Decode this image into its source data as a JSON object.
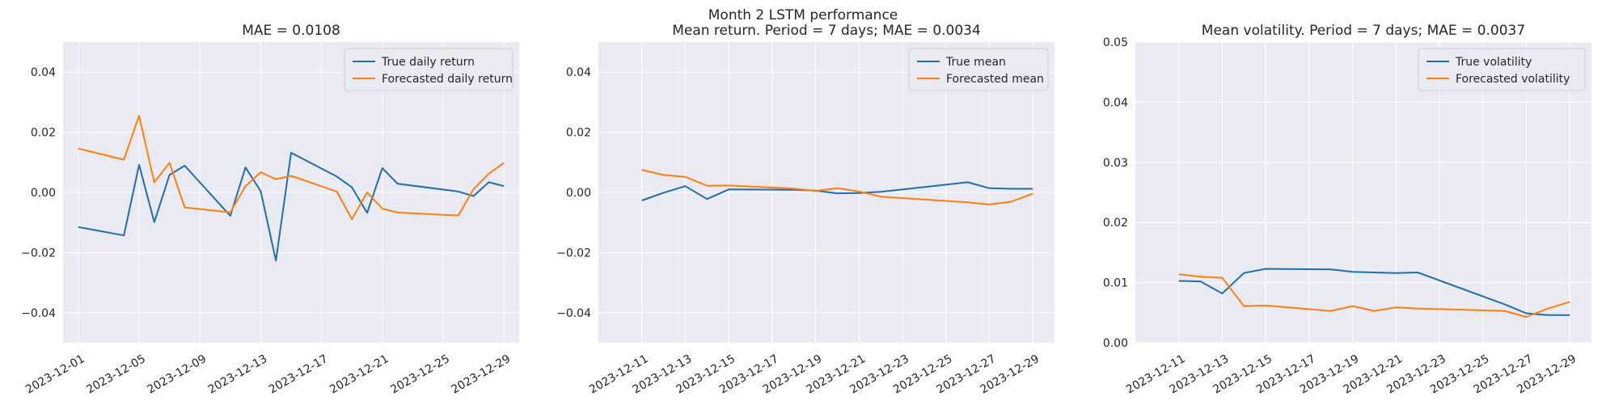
{
  "figure_title": "Month 2 LSTM performance",
  "colors": {
    "true": "#1f6fad",
    "forecast": "#ff7f0e",
    "panel_bg": "#eaeaf2",
    "grid": "#ffffff"
  },
  "chart_data": [
    {
      "type": "line",
      "title": "MAE = 0.0108",
      "xlabel": "",
      "ylabel": "",
      "xlim": [
        "2023-11-30",
        "2023-12-30"
      ],
      "ylim": [
        -0.05,
        0.05
      ],
      "yticks": [
        -0.04,
        -0.02,
        0.0,
        0.02,
        0.04
      ],
      "ytick_labels": [
        "−0.04",
        "−0.02",
        "0.00",
        "0.02",
        "0.04"
      ],
      "xticks": [
        "2023-12-01",
        "2023-12-05",
        "2023-12-09",
        "2023-12-13",
        "2023-12-17",
        "2023-12-21",
        "2023-12-25",
        "2023-12-29"
      ],
      "grid": true,
      "legend_position": "top-right",
      "series": [
        {
          "name": "True daily return",
          "color": "#1f6fad",
          "x": [
            "2023-12-01",
            "2023-12-04",
            "2023-12-05",
            "2023-12-06",
            "2023-12-07",
            "2023-12-08",
            "2023-12-11",
            "2023-12-12",
            "2023-12-13",
            "2023-12-14",
            "2023-12-15",
            "2023-12-18",
            "2023-12-19",
            "2023-12-20",
            "2023-12-21",
            "2023-12-22",
            "2023-12-26",
            "2023-12-27",
            "2023-12-28",
            "2023-12-29"
          ],
          "y": [
            -0.0115,
            -0.0143,
            0.0092,
            -0.0099,
            0.0058,
            0.0089,
            -0.0078,
            0.0083,
            0.0004,
            -0.0227,
            0.0132,
            0.0053,
            0.0017,
            -0.0068,
            0.0081,
            0.0029,
            0.0003,
            -0.0012,
            0.0034,
            0.0021
          ]
        },
        {
          "name": "Forecasted daily return",
          "color": "#ff7f0e",
          "x": [
            "2023-12-01",
            "2023-12-04",
            "2023-12-05",
            "2023-12-06",
            "2023-12-07",
            "2023-12-08",
            "2023-12-11",
            "2023-12-12",
            "2023-12-13",
            "2023-12-14",
            "2023-12-15",
            "2023-12-18",
            "2023-12-19",
            "2023-12-20",
            "2023-12-21",
            "2023-12-22",
            "2023-12-26",
            "2023-12-27",
            "2023-12-28",
            "2023-12-29"
          ],
          "y": [
            0.0146,
            0.0109,
            0.0255,
            0.0033,
            0.0099,
            -0.005,
            -0.0066,
            0.0021,
            0.0067,
            0.0044,
            0.0055,
            0.0003,
            -0.0089,
            0.0,
            -0.0054,
            -0.0067,
            -0.0077,
            0.0011,
            0.0062,
            0.0098
          ]
        }
      ]
    },
    {
      "type": "line",
      "title": "Mean return. Period = 7 days; MAE = 0.0034",
      "xlabel": "",
      "ylabel": "",
      "xlim": [
        "2023-12-09",
        "2023-12-30"
      ],
      "ylim": [
        -0.05,
        0.05
      ],
      "yticks": [
        -0.04,
        -0.02,
        0.0,
        0.02,
        0.04
      ],
      "ytick_labels": [
        "−0.04",
        "−0.02",
        "0.00",
        "0.02",
        "0.04"
      ],
      "xticks": [
        "2023-12-11",
        "2023-12-13",
        "2023-12-15",
        "2023-12-17",
        "2023-12-19",
        "2023-12-21",
        "2023-12-23",
        "2023-12-25",
        "2023-12-27",
        "2023-12-29"
      ],
      "grid": true,
      "legend_position": "top-right",
      "series": [
        {
          "name": "True mean",
          "color": "#1f6fad",
          "x": [
            "2023-12-11",
            "2023-12-12",
            "2023-12-13",
            "2023-12-14",
            "2023-12-15",
            "2023-12-18",
            "2023-12-19",
            "2023-12-20",
            "2023-12-21",
            "2023-12-22",
            "2023-12-26",
            "2023-12-27",
            "2023-12-28",
            "2023-12-29"
          ],
          "y": [
            -0.0027,
            -0.0001,
            0.0021,
            -0.0022,
            0.001,
            0.0009,
            0.0006,
            -0.0003,
            -0.0002,
            0.0002,
            0.0034,
            0.0014,
            0.0012,
            0.0012
          ]
        },
        {
          "name": "Forecasted mean",
          "color": "#ff7f0e",
          "x": [
            "2023-12-11",
            "2023-12-12",
            "2023-12-13",
            "2023-12-14",
            "2023-12-15",
            "2023-12-18",
            "2023-12-19",
            "2023-12-20",
            "2023-12-21",
            "2023-12-22",
            "2023-12-26",
            "2023-12-27",
            "2023-12-28",
            "2023-12-29"
          ],
          "y": [
            0.0075,
            0.0058,
            0.0052,
            0.0022,
            0.0023,
            0.0013,
            0.0005,
            0.0014,
            0.0003,
            -0.0014,
            -0.0033,
            -0.004,
            -0.0031,
            -0.0004
          ]
        }
      ]
    },
    {
      "type": "line",
      "title": "Mean volatility. Period = 7 days; MAE = 0.0037",
      "xlabel": "",
      "ylabel": "",
      "xlim": [
        "2023-12-09",
        "2023-12-30"
      ],
      "ylim": [
        0.0,
        0.05
      ],
      "yticks": [
        0.0,
        0.01,
        0.02,
        0.03,
        0.04,
        0.05
      ],
      "ytick_labels": [
        "0.00",
        "0.01",
        "0.02",
        "0.03",
        "0.04",
        "0.05"
      ],
      "xticks": [
        "2023-12-11",
        "2023-12-13",
        "2023-12-15",
        "2023-12-17",
        "2023-12-19",
        "2023-12-21",
        "2023-12-23",
        "2023-12-25",
        "2023-12-27",
        "2023-12-29"
      ],
      "grid": true,
      "legend_position": "top-right",
      "series": [
        {
          "name": "True volatility",
          "color": "#1f6fad",
          "x": [
            "2023-12-11",
            "2023-12-12",
            "2023-12-13",
            "2023-12-14",
            "2023-12-15",
            "2023-12-18",
            "2023-12-19",
            "2023-12-20",
            "2023-12-21",
            "2023-12-22",
            "2023-12-26",
            "2023-12-27",
            "2023-12-28",
            "2023-12-29"
          ],
          "y": [
            0.0103,
            0.0102,
            0.0082,
            0.0116,
            0.0123,
            0.0122,
            0.0118,
            0.0117,
            0.0116,
            0.0117,
            0.0064,
            0.0049,
            0.0046,
            0.0046
          ]
        },
        {
          "name": "Forecasted volatility",
          "color": "#ff7f0e",
          "x": [
            "2023-12-11",
            "2023-12-12",
            "2023-12-13",
            "2023-12-14",
            "2023-12-15",
            "2023-12-18",
            "2023-12-19",
            "2023-12-20",
            "2023-12-21",
            "2023-12-22",
            "2023-12-26",
            "2023-12-27",
            "2023-12-28",
            "2023-12-29"
          ],
          "y": [
            0.0114,
            0.011,
            0.0108,
            0.0061,
            0.0062,
            0.0053,
            0.0061,
            0.0053,
            0.0059,
            0.0057,
            0.0053,
            0.0043,
            0.0057,
            0.0068
          ]
        }
      ]
    }
  ]
}
